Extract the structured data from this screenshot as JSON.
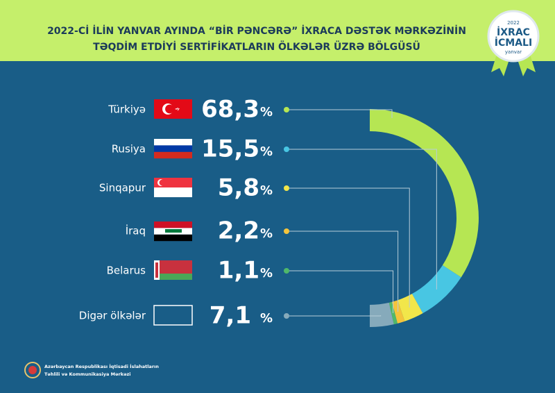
{
  "chart_data": {
    "type": "pie",
    "title": [
      "2022-Cİ İLİN YANVAR AYINDA “BİR PƏNCƏRƏ” İXRACA DƏSTƏK MƏRKƏZİNİN",
      "TƏQDİM ETDİYİ SERTİFİKATLARIN ÖLKƏLƏR ÜZRƏ BÖLGÜSÜ"
    ],
    "categories": [
      "Türkiyə",
      "Rusiya",
      "Sinqapur",
      "İraq",
      "Belarus",
      "Digər ölkələr"
    ],
    "values": [
      68.3,
      15.5,
      5.8,
      2.2,
      1.1,
      7.1
    ],
    "value_labels": [
      "68,3",
      "15,5",
      "5,8",
      "2,2",
      "1,1",
      "7,1"
    ],
    "unit": "%",
    "colors": [
      "#b6e653",
      "#48c6e3",
      "#f2e64a",
      "#f4c43c",
      "#4fb86a",
      "#86aabb"
    ],
    "badge": {
      "year": "2022",
      "line1": "İXRAC",
      "line2": "İCMALI",
      "month": "yanvar"
    },
    "footer": [
      "Azərbaycan Respublikası İqtisadi İslahatların",
      "Təhlili və Kommunikasiya Mərkəzi"
    ]
  }
}
